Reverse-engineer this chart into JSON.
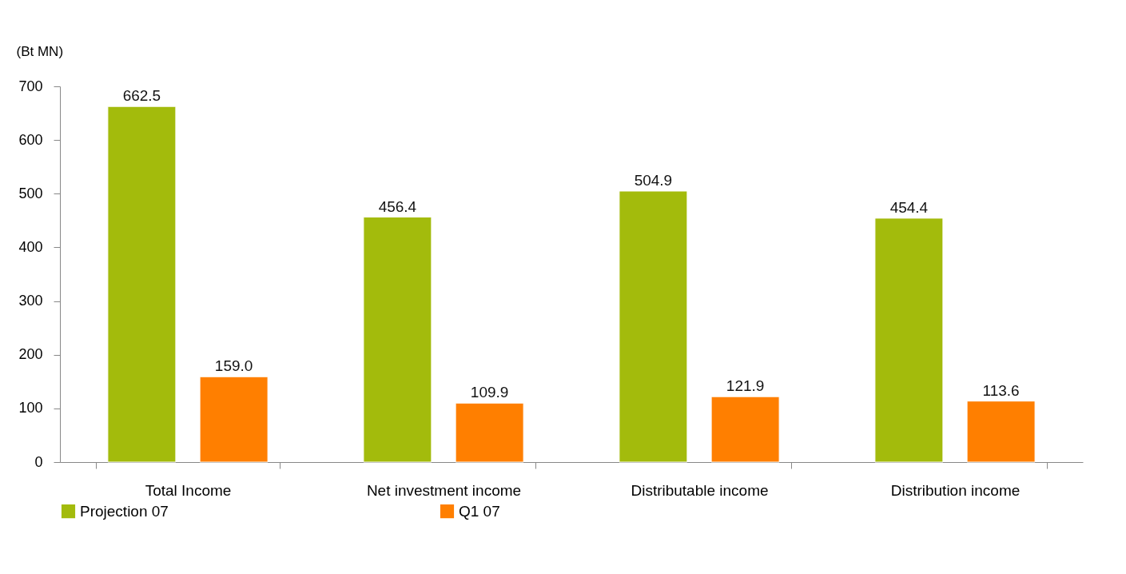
{
  "chart_data": {
    "type": "bar",
    "ylabel": "(Bt MN)",
    "categories": [
      "Total Income",
      "Net investment income",
      "Distributable income",
      "Distribution income"
    ],
    "series": [
      {
        "name": "Projection  07",
        "color": "#a3bb0c",
        "values": [
          662.5,
          456.4,
          504.9,
          454.4
        ],
        "value_labels": [
          "662.5",
          "456.4",
          "504.9",
          "454.4"
        ]
      },
      {
        "name": "Q1 07",
        "color": "#ff7f00",
        "values": [
          159.0,
          109.9,
          121.9,
          113.6
        ],
        "value_labels": [
          "159.0",
          "109.9",
          "121.9",
          "113.6"
        ]
      }
    ],
    "ylim": [
      0,
      700
    ],
    "yticks": [
      0,
      100,
      200,
      300,
      400,
      500,
      600,
      700
    ],
    "grid": false,
    "legend": "bottom"
  }
}
